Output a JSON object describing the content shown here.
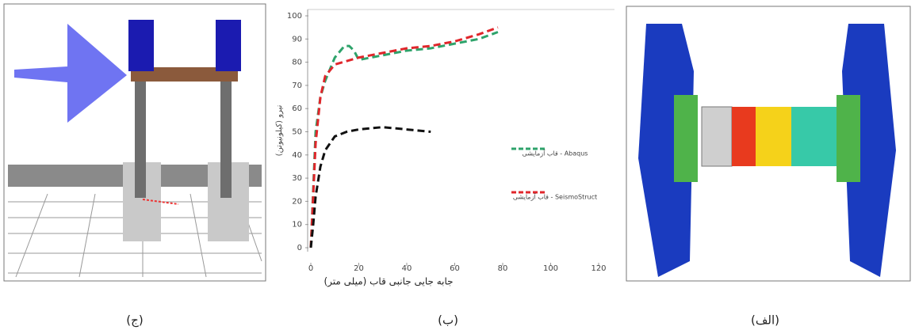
{
  "captions": [
    "(ج)",
    "(ب)",
    "(الف)"
  ],
  "chart_data": {
    "type": "line",
    "xlabel": "جابه جایی جانبی قاب (میلی متر)",
    "ylabel": "نیرو (کیلونیوتن)",
    "xlim": [
      0,
      120
    ],
    "xticks": [
      0,
      20,
      40,
      60,
      80,
      100,
      120
    ],
    "ylim": [
      0,
      100
    ],
    "yticks": [
      0,
      10,
      20,
      30,
      40,
      50,
      60,
      70,
      80,
      90,
      100
    ],
    "legend": "right",
    "series": [
      {
        "name": "قاب آزمایشی - Abaqus",
        "color": "#2ea36b",
        "x": [
          0,
          2,
          4,
          6,
          10,
          14,
          16,
          18,
          20,
          30,
          40,
          50,
          60,
          70,
          78
        ],
        "values": [
          0,
          50,
          65,
          72,
          82,
          87,
          87,
          85,
          81,
          83,
          85,
          86,
          88,
          90,
          93
        ]
      },
      {
        "name": "قاب آزمایشی - SeismoStruct",
        "color": "#e0262b",
        "x": [
          0,
          2,
          4,
          6,
          10,
          20,
          30,
          40,
          50,
          60,
          70,
          78
        ],
        "values": [
          0,
          45,
          65,
          74,
          79,
          82,
          84,
          86,
          87,
          89,
          92,
          95
        ]
      },
      {
        "name": null,
        "color": "#111111",
        "x": [
          0,
          1,
          2,
          4,
          6,
          10,
          15,
          20,
          30,
          40,
          50
        ],
        "values": [
          0,
          10,
          22,
          35,
          42,
          48,
          50,
          51,
          52,
          51,
          50
        ]
      }
    ]
  }
}
